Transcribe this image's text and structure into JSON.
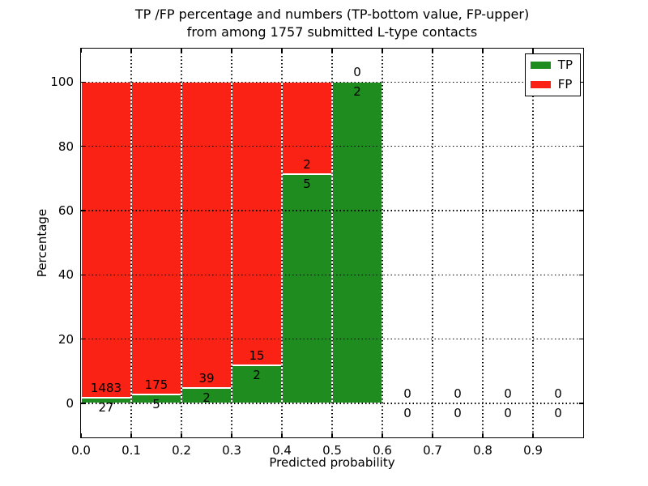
{
  "figure": {
    "title_line1": "TP /FP percentage and numbers (TP-bottom value, FP-upper)",
    "title_line2": "from among 1757 submitted L-type contacts",
    "background_color": "#ffffff",
    "axis_color": "#000000"
  },
  "chart_data": {
    "type": "bar",
    "subtype": "stacked-percentage",
    "title": "TP /FP percentage and numbers (TP-bottom value, FP-upper) from among 1757 submitted L-type contacts",
    "xlabel": "Predicted probability",
    "ylabel": "Percentage",
    "total_contacts": 1757,
    "xlim": [
      0.0,
      1.0
    ],
    "ylim": [
      -10.6,
      110.4
    ],
    "bin_width": 0.1,
    "grid": true,
    "grid_style": "dotted",
    "x_tick_values": [
      0.0,
      0.1,
      0.2,
      0.3,
      0.4,
      0.5,
      0.6,
      0.7,
      0.8,
      0.9
    ],
    "x_tick_labels": [
      "0.0",
      "0.1",
      "0.2",
      "0.3",
      "0.4",
      "0.5",
      "0.6",
      "0.7",
      "0.8",
      "0.9"
    ],
    "y_tick_values": [
      0,
      20,
      40,
      60,
      80,
      100
    ],
    "y_tick_labels": [
      "0",
      "20",
      "40",
      "60",
      "80",
      "100"
    ],
    "categories": [
      "0.0-0.1",
      "0.1-0.2",
      "0.2-0.3",
      "0.3-0.4",
      "0.4-0.5",
      "0.5-0.6",
      "0.6-0.7",
      "0.7-0.8",
      "0.8-0.9",
      "0.9-1.0"
    ],
    "series": [
      {
        "name": "TP",
        "color": "#1f8c1f",
        "position": "bottom",
        "values": [
          27,
          5,
          2,
          2,
          5,
          2,
          0,
          0,
          0,
          0
        ]
      },
      {
        "name": "FP",
        "color": "#fa2115",
        "position": "top",
        "values": [
          1483,
          175,
          39,
          15,
          2,
          0,
          0,
          0,
          0,
          0
        ]
      }
    ],
    "tp_percentages": [
      1.8,
      2.8,
      4.9,
      11.8,
      71.4,
      100.0,
      0,
      0,
      0,
      0
    ],
    "legend": {
      "position": "upper right",
      "entries": [
        {
          "label": "TP",
          "color": "#1f8c1f"
        },
        {
          "label": "FP",
          "color": "#fa2115"
        }
      ]
    }
  }
}
